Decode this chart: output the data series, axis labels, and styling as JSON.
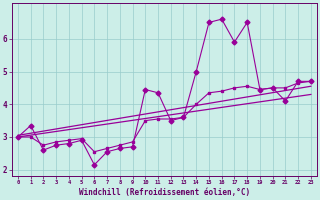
{
  "xlabel": "Windchill (Refroidissement éolien,°C)",
  "bg_color": "#cceee8",
  "line_color": "#990099",
  "grid_color": "#99cccc",
  "zigzag_x": [
    0,
    1,
    2,
    3,
    4,
    5,
    6,
    7,
    8,
    9,
    10,
    11,
    12,
    13,
    14,
    15,
    16,
    17,
    18,
    19,
    20,
    21,
    22,
    23
  ],
  "zigzag_y": [
    3.0,
    3.35,
    2.6,
    2.75,
    2.8,
    2.9,
    2.15,
    2.55,
    2.65,
    2.7,
    4.45,
    4.35,
    3.5,
    3.6,
    5.0,
    6.5,
    6.6,
    5.9,
    6.5,
    4.45,
    4.5,
    4.1,
    4.7,
    4.7
  ],
  "smooth_x": [
    0,
    1,
    2,
    3,
    4,
    5,
    6,
    7,
    8,
    9,
    10,
    11,
    12,
    13,
    14,
    15,
    16,
    17,
    18,
    19,
    20,
    21,
    22,
    23
  ],
  "smooth_y": [
    3.0,
    3.0,
    2.75,
    2.85,
    2.9,
    2.95,
    2.55,
    2.65,
    2.75,
    2.85,
    3.5,
    3.55,
    3.55,
    3.6,
    4.0,
    4.35,
    4.4,
    4.5,
    4.55,
    4.45,
    4.5,
    4.5,
    4.65,
    4.7
  ],
  "trend1_x": [
    0,
    23
  ],
  "trend1_y": [
    3.05,
    4.55
  ],
  "trend2_x": [
    0,
    23
  ],
  "trend2_y": [
    3.0,
    4.3
  ],
  "ylim": [
    1.8,
    7.1
  ],
  "xlim": [
    -0.5,
    23.5
  ],
  "yticks": [
    2,
    3,
    4,
    5,
    6
  ],
  "xticks": [
    0,
    1,
    2,
    3,
    4,
    5,
    6,
    7,
    8,
    9,
    10,
    11,
    12,
    13,
    14,
    15,
    16,
    17,
    18,
    19,
    20,
    21,
    22,
    23
  ]
}
